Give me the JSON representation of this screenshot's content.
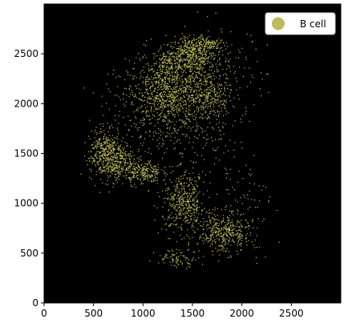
{
  "chart_data": {
    "type": "scatter",
    "title": "",
    "xlabel": "",
    "ylabel": "",
    "xlim": [
      0,
      3000
    ],
    "ylim": [
      0,
      3000
    ],
    "xticks": [
      0,
      500,
      1000,
      1500,
      2000,
      2500
    ],
    "yticks": [
      0,
      500,
      1000,
      1500,
      2000,
      2500
    ],
    "background": "#000000",
    "grid": false,
    "legend_position": "top-right",
    "series": [
      {
        "name": "B cell",
        "color": "#bcbd5b",
        "clusters": [
          {
            "x": 1480,
            "y": 2480,
            "sx": 130,
            "sy": 90,
            "n": 420
          },
          {
            "x": 1260,
            "y": 2400,
            "sx": 90,
            "sy": 70,
            "n": 150
          },
          {
            "x": 1250,
            "y": 2080,
            "sx": 200,
            "sy": 170,
            "n": 850
          },
          {
            "x": 1580,
            "y": 2200,
            "sx": 140,
            "sy": 150,
            "n": 260
          },
          {
            "x": 1640,
            "y": 2600,
            "sx": 120,
            "sy": 40,
            "n": 150
          },
          {
            "x": 1720,
            "y": 2050,
            "sx": 70,
            "sy": 90,
            "n": 90
          },
          {
            "x": 680,
            "y": 1440,
            "sx": 110,
            "sy": 110,
            "n": 500
          },
          {
            "x": 600,
            "y": 1600,
            "sx": 60,
            "sy": 90,
            "n": 120
          },
          {
            "x": 1000,
            "y": 1310,
            "sx": 90,
            "sy": 60,
            "n": 230
          },
          {
            "x": 1420,
            "y": 1000,
            "sx": 110,
            "sy": 150,
            "n": 450
          },
          {
            "x": 1820,
            "y": 700,
            "sx": 130,
            "sy": 100,
            "n": 400
          },
          {
            "x": 1350,
            "y": 450,
            "sx": 110,
            "sy": 45,
            "n": 90
          },
          {
            "x": 1700,
            "y": 1800,
            "sx": 200,
            "sy": 200,
            "n": 120
          },
          {
            "x": 1300,
            "y": 1700,
            "sx": 250,
            "sy": 200,
            "n": 110
          },
          {
            "x": 2000,
            "y": 1000,
            "sx": 150,
            "sy": 250,
            "n": 80
          },
          {
            "x": 900,
            "y": 2000,
            "sx": 250,
            "sy": 300,
            "n": 90
          },
          {
            "x": 1850,
            "y": 2350,
            "sx": 200,
            "sy": 200,
            "n": 80
          }
        ]
      }
    ]
  }
}
